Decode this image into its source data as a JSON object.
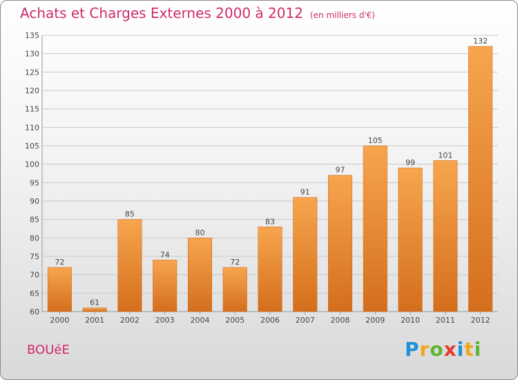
{
  "header": {
    "title": "Achats et Charges Externes 2000 à 2012",
    "subtitle": "(en milliers d'€)"
  },
  "location": "BOUéE",
  "brand": {
    "letters": [
      "P",
      "r",
      "o",
      "x",
      "i",
      "t",
      "i"
    ],
    "colors": [
      "#1f8fd6",
      "#f2a51a",
      "#5cb531",
      "#e53a2f",
      "#1f8fd6",
      "#f2a51a",
      "#5cb531"
    ]
  },
  "colors": {
    "title": "#d02a6a",
    "bar_top": "#f7a54e",
    "bar_bottom": "#d46e1c",
    "grid": "#c8c8c8",
    "text": "#444444"
  },
  "chart_data": {
    "type": "bar",
    "title": "Achats et Charges Externes 2000 à 2012",
    "subtitle": "(en milliers d'€)",
    "categories": [
      "2000",
      "2001",
      "2002",
      "2003",
      "2004",
      "2005",
      "2006",
      "2007",
      "2008",
      "2009",
      "2010",
      "2011",
      "2012"
    ],
    "values": [
      72,
      61,
      85,
      74,
      80,
      72,
      83,
      91,
      97,
      105,
      99,
      101,
      132
    ],
    "ylim": [
      60,
      135
    ],
    "yticks": [
      60,
      65,
      70,
      75,
      80,
      85,
      90,
      95,
      100,
      105,
      110,
      115,
      120,
      125,
      130,
      135
    ],
    "grid": true,
    "xlabel": "",
    "ylabel": ""
  }
}
